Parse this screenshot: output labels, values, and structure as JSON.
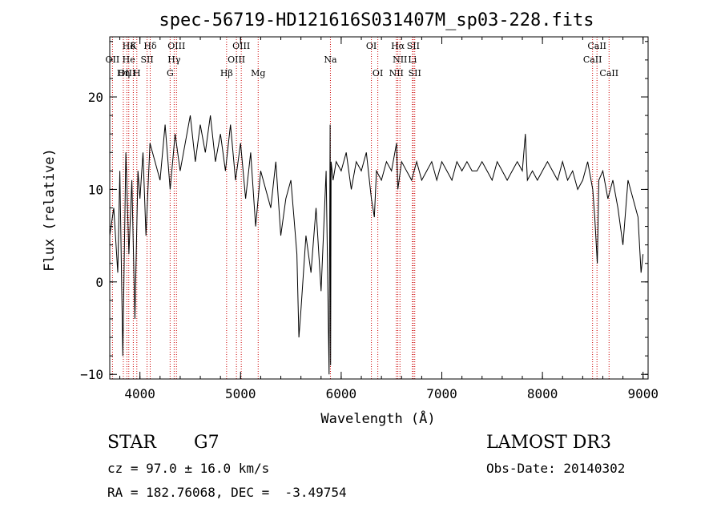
{
  "chart_data": {
    "type": "line",
    "title": "spec-56719-HD121616S031407M_sp03-228.fits",
    "xlabel": "Wavelength (Å)",
    "ylabel": "Flux (relative)",
    "xlim": [
      3700,
      9050
    ],
    "ylim": [
      -10.5,
      26.5
    ],
    "xticks": [
      4000,
      5000,
      6000,
      7000,
      8000,
      9000
    ],
    "xtick_labels": [
      "4000",
      "5000",
      "6000",
      "7000",
      "8000",
      "9000"
    ],
    "yticks": [
      -10,
      0,
      10,
      20
    ],
    "ytick_labels": [
      "−10",
      "0",
      "10",
      "20"
    ],
    "series": [
      {
        "name": "flux",
        "x": [
          3700,
          3740,
          3780,
          3800,
          3830,
          3860,
          3890,
          3920,
          3950,
          3980,
          4000,
          4030,
          4060,
          4100,
          4150,
          4200,
          4250,
          4300,
          4350,
          4400,
          4450,
          4500,
          4550,
          4600,
          4650,
          4700,
          4750,
          4800,
          4850,
          4900,
          4950,
          5000,
          5050,
          5100,
          5150,
          5200,
          5250,
          5300,
          5350,
          5400,
          5450,
          5500,
          5530,
          5560,
          5580,
          5600,
          5650,
          5700,
          5750,
          5800,
          5850,
          5880,
          5890,
          5895,
          5900,
          5920,
          5950,
          6000,
          6050,
          6100,
          6150,
          6200,
          6250,
          6300,
          6330,
          6350,
          6400,
          6450,
          6500,
          6550,
          6563,
          6600,
          6650,
          6700,
          6750,
          6800,
          6850,
          6900,
          6950,
          7000,
          7050,
          7100,
          7150,
          7200,
          7250,
          7300,
          7350,
          7400,
          7450,
          7500,
          7550,
          7600,
          7650,
          7700,
          7750,
          7800,
          7830,
          7850,
          7900,
          7950,
          8000,
          8050,
          8100,
          8150,
          8200,
          8250,
          8300,
          8350,
          8400,
          8450,
          8500,
          8520,
          8545,
          8560,
          8600,
          8650,
          8700,
          8750,
          8800,
          8850,
          8900,
          8950,
          8980,
          9000
        ],
        "y": [
          5,
          8,
          1,
          12,
          -8,
          14,
          3,
          11,
          -4,
          12,
          9,
          14,
          5,
          15,
          13,
          11,
          17,
          10,
          16,
          12,
          15,
          18,
          13,
          17,
          14,
          18,
          13,
          16,
          12,
          17,
          11,
          15,
          9,
          14,
          6,
          12,
          10,
          8,
          13,
          5,
          9,
          11,
          7,
          3,
          -6,
          -3,
          5,
          1,
          8,
          -1,
          12,
          -10,
          17,
          -9,
          13,
          11,
          13,
          12,
          14,
          10,
          13,
          12,
          14,
          9,
          7,
          12,
          11,
          13,
          12,
          15,
          10,
          13,
          12,
          11,
          13,
          11,
          12,
          13,
          11,
          13,
          12,
          11,
          13,
          12,
          13,
          12,
          12,
          13,
          12,
          11,
          13,
          12,
          11,
          12,
          13,
          12,
          16,
          11,
          12,
          11,
          12,
          13,
          12,
          11,
          13,
          11,
          12,
          10,
          11,
          13,
          10,
          7,
          2,
          11,
          12,
          9,
          11,
          8,
          4,
          11,
          9,
          7,
          1,
          3
        ]
      }
    ],
    "line_labels": [
      {
        "label": "Hδ",
        "wave": 3890,
        "row": 1
      },
      {
        "label": "K",
        "wave": 3934,
        "row": 1
      },
      {
        "label": "Hδ",
        "wave": 4102,
        "row": 1
      },
      {
        "label": "OIII",
        "wave": 4363,
        "row": 1
      },
      {
        "label": "OIII",
        "wave": 5007,
        "row": 1
      },
      {
        "label": "OI",
        "wave": 6300,
        "row": 1
      },
      {
        "label": "Hα",
        "wave": 6563,
        "row": 1
      },
      {
        "label": "SII",
        "wave": 6716,
        "row": 1
      },
      {
        "label": "CaII",
        "wave": 8542,
        "row": 1
      },
      {
        "label": "OII",
        "wave": 3727,
        "row": 2
      },
      {
        "label": "He",
        "wave": 3889,
        "row": 2
      },
      {
        "label": "SII",
        "wave": 4071,
        "row": 2
      },
      {
        "label": "Hγ",
        "wave": 4340,
        "row": 2
      },
      {
        "label": "OIII",
        "wave": 4959,
        "row": 2
      },
      {
        "label": "Na",
        "wave": 5893,
        "row": 2
      },
      {
        "label": "NII",
        "wave": 6584,
        "row": 2
      },
      {
        "label": "Li",
        "wave": 6708,
        "row": 2
      },
      {
        "label": "CaII",
        "wave": 8498,
        "row": 2
      },
      {
        "label": "OIII",
        "wave": 3870,
        "row": 3
      },
      {
        "label": "Hη",
        "wave": 3835,
        "row": 3
      },
      {
        "label": "H",
        "wave": 3969,
        "row": 3
      },
      {
        "label": "G",
        "wave": 4300,
        "row": 3
      },
      {
        "label": "Hβ",
        "wave": 4861,
        "row": 3
      },
      {
        "label": "Mg",
        "wave": 5175,
        "row": 3
      },
      {
        "label": "OI",
        "wave": 6364,
        "row": 3
      },
      {
        "label": "NII",
        "wave": 6548,
        "row": 3
      },
      {
        "label": "SII",
        "wave": 6731,
        "row": 3
      },
      {
        "label": "CaII",
        "wave": 8662,
        "row": 3
      }
    ],
    "marker_lines": [
      3727,
      3835,
      3870,
      3889,
      3934,
      3969,
      4071,
      4102,
      4300,
      4340,
      4363,
      4861,
      4959,
      5007,
      5175,
      5893,
      6300,
      6364,
      6548,
      6563,
      6584,
      6708,
      6716,
      6731,
      8498,
      8542,
      8662
    ],
    "marker_color": "#cc0000",
    "line_color": "#000000"
  },
  "info": {
    "object_type": "STAR",
    "subclass": "G7",
    "survey": "LAMOST DR3",
    "cz": "cz = 97.0 ± 16.0 km/s",
    "obs_date": "Obs-Date: 20140302",
    "coords": "RA = 182.76068, DEC =  -3.49754"
  }
}
